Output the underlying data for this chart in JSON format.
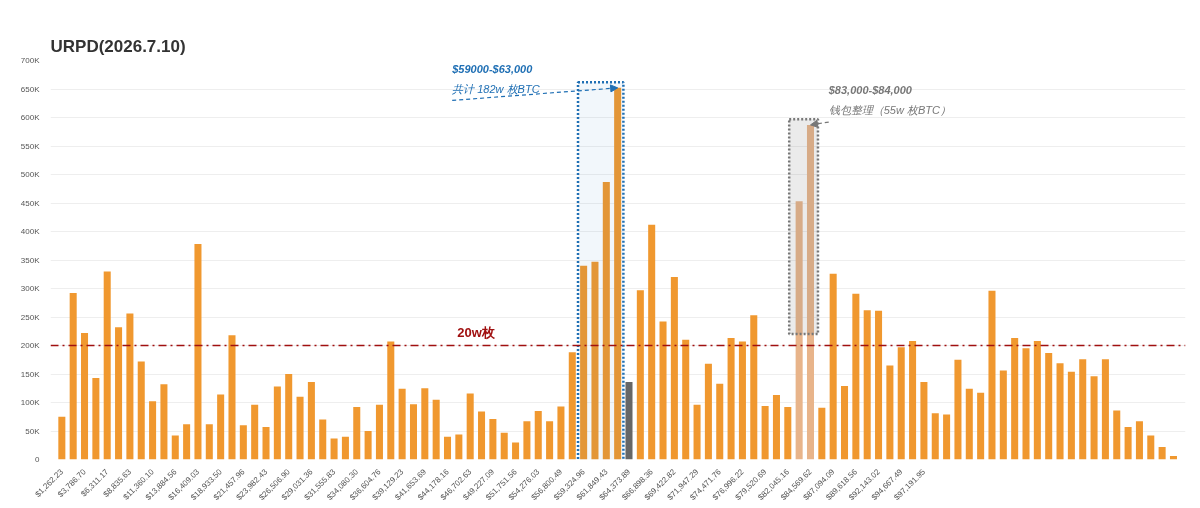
{
  "chart_data": {
    "type": "bar",
    "title": "URPD(2026.7.10)",
    "x": [
      1262.23,
      2524.47,
      3786.7,
      5048.94,
      6311.17,
      7573.4,
      8835.63,
      10097.87,
      11360.1,
      12622.33,
      13884.56,
      15146.8,
      16409.03,
      17671.27,
      18933.5,
      20195.73,
      21457.96,
      22720.2,
      23982.43,
      25244.67,
      26506.9,
      27769.13,
      29031.36,
      30293.6,
      31555.83,
      32818.07,
      34080.3,
      35342.53,
      36604.76,
      37867.0,
      39129.23,
      40391.46,
      41653.69,
      42915.93,
      44178.16,
      45440.4,
      46702.63,
      47964.86,
      49227.09,
      50489.33,
      51751.56,
      53013.8,
      54276.03,
      55538.26,
      56800.49,
      58062.73,
      59324.96,
      60587.2,
      61849.43,
      63111.66,
      64373.89,
      65636.13,
      66898.36,
      68160.59,
      69422.82,
      70685.06,
      71947.29,
      73209.53,
      74471.76,
      75733.99,
      76996.22,
      78258.46,
      79520.69,
      80782.93,
      82045.16,
      83307.39,
      84569.62,
      85831.86,
      87094.09,
      88356.33,
      89618.56,
      90880.79,
      92143.02,
      93405.26,
      94667.49,
      95929.72,
      97191.95,
      98454.19,
      99716.42,
      100978.65,
      102240.88,
      103503.12,
      104765.35,
      106027.58,
      107289.82,
      108552.05,
      109814.28,
      111076.51,
      112338.75,
      113600.98,
      114863.21,
      116125.45,
      117387.68,
      118649.91,
      119912.14,
      121174.38,
      122436.61,
      123698.84,
      124961.07
    ],
    "values": [
      75000,
      292000,
      222000,
      143000,
      330000,
      232000,
      256000,
      172000,
      102000,
      132000,
      42000,
      62000,
      378000,
      62000,
      114000,
      218000,
      60000,
      96000,
      57000,
      128000,
      150000,
      110000,
      136000,
      70000,
      37000,
      40000,
      92000,
      50000,
      96000,
      207000,
      124000,
      97000,
      125000,
      105000,
      40000,
      44000,
      116000,
      84000,
      71000,
      47000,
      30000,
      67000,
      85000,
      67000,
      93000,
      188000,
      340000,
      347000,
      487000,
      652000,
      136000,
      297000,
      412000,
      242000,
      320000,
      210000,
      96000,
      168000,
      133000,
      213000,
      207000,
      253000,
      94000,
      113000,
      92000,
      453000,
      587000,
      91000,
      326000,
      129000,
      291000,
      262000,
      261000,
      165000,
      197000,
      208000,
      136000,
      81000,
      79000,
      175000,
      124000,
      117000,
      296000,
      156000,
      213000,
      195000,
      208000,
      187000,
      169000,
      154000,
      176000,
      146000,
      176000,
      86000,
      57000,
      67000,
      42000,
      22000,
      6000
    ],
    "colors": [
      "#f0982f",
      "#f0982f",
      "#f0982f",
      "#f0982f",
      "#f0982f",
      "#f0982f",
      "#f0982f",
      "#f0982f",
      "#f0982f",
      "#f0982f",
      "#f0982f",
      "#f0982f",
      "#f0982f",
      "#f0982f",
      "#f0982f",
      "#f0982f",
      "#f0982f",
      "#f0982f",
      "#f0982f",
      "#f0982f",
      "#f0982f",
      "#f0982f",
      "#f0982f",
      "#f0982f",
      "#f0982f",
      "#f0982f",
      "#f0982f",
      "#f0982f",
      "#f0982f",
      "#f0982f",
      "#f0982f",
      "#f0982f",
      "#f0982f",
      "#f0982f",
      "#f0982f",
      "#f0982f",
      "#f0982f",
      "#f0982f",
      "#f0982f",
      "#f0982f",
      "#f0982f",
      "#f0982f",
      "#f0982f",
      "#f0982f",
      "#f0982f",
      "#f0982f",
      "#f0982f",
      "#f0982f",
      "#f0982f",
      "#f0982f",
      "#666666",
      "#f0982f",
      "#f0982f",
      "#f0982f",
      "#f0982f",
      "#f0982f",
      "#f0982f",
      "#f0982f",
      "#f0982f",
      "#f0982f",
      "#f0982f",
      "#f0982f",
      "#f0982f",
      "#f0982f",
      "#f0982f",
      "#e8b48a",
      "#e8b48a",
      "#f0982f",
      "#f0982f",
      "#f0982f",
      "#f0982f",
      "#f0982f",
      "#f0982f",
      "#f0982f",
      "#f0982f",
      "#f0982f",
      "#f0982f",
      "#f0982f",
      "#f0982f",
      "#f0982f",
      "#f0982f",
      "#f0982f",
      "#f0982f",
      "#f0982f",
      "#f0982f",
      "#f0982f",
      "#f0982f",
      "#f0982f",
      "#f0982f",
      "#f0982f",
      "#f0982f",
      "#f0982f",
      "#f0982f",
      "#f0982f",
      "#f0982f",
      "#f0982f",
      "#f0982f",
      "#f0982f",
      "#f0982f"
    ],
    "xlim": [
      0,
      126300
    ],
    "xticks": [
      {
        "value": 1262.23,
        "label": "$1,262.23"
      },
      {
        "value": 3786.7,
        "label": "$3,786.70"
      },
      {
        "value": 6311.17,
        "label": "$6,311.17"
      },
      {
        "value": 8835.63,
        "label": "$8,835.63"
      },
      {
        "value": 11360.1,
        "label": "$11,360.10"
      },
      {
        "value": 13884.56,
        "label": "$13,884.56"
      },
      {
        "value": 16409.03,
        "label": "$16,409.03"
      },
      {
        "value": 18933.5,
        "label": "$18,933.50"
      },
      {
        "value": 21457.96,
        "label": "$21,457.96"
      },
      {
        "value": 23982.43,
        "label": "$23,982.43"
      },
      {
        "value": 26506.9,
        "label": "$26,506.90"
      },
      {
        "value": 29031.36,
        "label": "$29,031.36"
      },
      {
        "value": 31555.83,
        "label": "$31,555.83"
      },
      {
        "value": 34080.3,
        "label": "$34,080.30"
      },
      {
        "value": 36604.76,
        "label": "$36,604.76"
      },
      {
        "value": 39129.23,
        "label": "$39,129.23"
      },
      {
        "value": 41653.69,
        "label": "$41,653.69"
      },
      {
        "value": 44178.16,
        "label": "$44,178.16"
      },
      {
        "value": 46702.63,
        "label": "$46,702.63"
      },
      {
        "value": 49227.09,
        "label": "$49,227.09"
      },
      {
        "value": 51751.56,
        "label": "$51,751.56"
      },
      {
        "value": 54276.03,
        "label": "$54,276.03"
      },
      {
        "value": 56800.49,
        "label": "$56,800.49"
      },
      {
        "value": 59324.96,
        "label": "$59,324.96"
      },
      {
        "value": 61849.43,
        "label": "$61,849.43"
      },
      {
        "value": 64373.89,
        "label": "$64,373.89"
      },
      {
        "value": 66898.36,
        "label": "$66,898.36"
      },
      {
        "value": 69422.82,
        "label": "$69,422.82"
      },
      {
        "value": 71947.29,
        "label": "$71,947.29"
      },
      {
        "value": 74471.76,
        "label": "$74,471.76"
      },
      {
        "value": 76996.22,
        "label": "$76,996.22"
      },
      {
        "value": 79520.69,
        "label": "$79,520.69"
      },
      {
        "value": 82045.16,
        "label": "$82,045.16"
      },
      {
        "value": 84569.62,
        "label": "$84,569.62"
      },
      {
        "value": 87094.09,
        "label": "$87,094.09"
      },
      {
        "value": 89618.56,
        "label": "$89,618.56"
      },
      {
        "value": 92143.02,
        "label": "$92,143.02"
      },
      {
        "value": 94667.49,
        "label": "$94,667.49"
      },
      {
        "value": 97191.95,
        "label": "$97,191.95"
      }
    ],
    "ylim": [
      0,
      700000
    ],
    "yticks": [
      0,
      {
        "value": 50000,
        "label": "50K"
      },
      {
        "value": 100000,
        "label": "100K"
      },
      {
        "value": 150000,
        "label": "150K"
      },
      {
        "value": 200000,
        "label": "200K"
      },
      {
        "value": 250000,
        "label": "250K"
      },
      {
        "value": 300000,
        "label": "300K"
      },
      {
        "value": 350000,
        "label": "350K"
      },
      {
        "value": 400000,
        "label": "400K"
      },
      {
        "value": 450000,
        "label": "450K"
      },
      {
        "value": 500000,
        "label": "500K"
      },
      {
        "value": 550000,
        "label": "550K"
      },
      {
        "value": 600000,
        "label": "600K"
      },
      {
        "value": 650000,
        "label": "650K"
      },
      {
        "value": 700000,
        "label": "700K"
      }
    ],
    "grid": "y",
    "ref_lines": [
      {
        "axis": "y",
        "value": 200000,
        "label": "20w枚",
        "color": "#a01010",
        "line_style": "dashdot"
      }
    ],
    "bands": [
      {
        "axis": "x",
        "from": 58700,
        "to": 63750,
        "label": "$59000-$63,000",
        "color": "#1f6fb4"
      },
      {
        "axis": "x",
        "from": 82200,
        "to": 85400,
        "label": "$83,000-$84,000",
        "color": "#777777"
      }
    ],
    "annotations": [
      {
        "text": "共计 182w 枚BTC",
        "x": 63111.66,
        "y": 652000
      },
      {
        "text": "钱包整理（55w 枚BTC）",
        "x": 84569.62,
        "y": 587000
      }
    ]
  }
}
